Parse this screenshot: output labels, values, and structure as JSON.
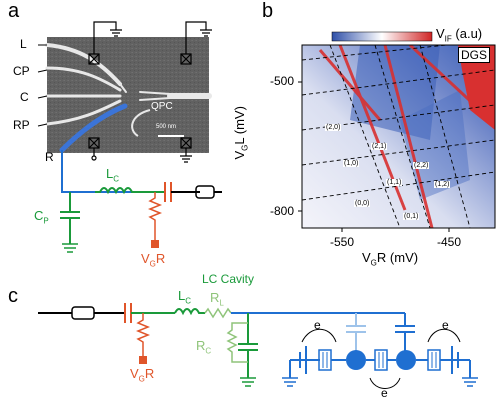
{
  "panels": {
    "a": "a",
    "b": "b",
    "c": "c"
  },
  "panel_a": {
    "gate_labels": [
      "L",
      "CP",
      "C",
      "RP",
      "R"
    ],
    "qpc_label": "QPC",
    "scale_bar": "500 nm",
    "lc_label": "L",
    "lc_sub": "C",
    "cp_label": "C",
    "cp_sub": "P",
    "vgr_label": "V",
    "vgr_sub": "G",
    "vgr_tail": "R"
  },
  "panel_b": {
    "colorbar_label": "V",
    "colorbar_sub": "IF",
    "colorbar_unit": " (a.u)",
    "tag": "DGS",
    "ylabel_main": "V",
    "ylabel_sub": "G",
    "ylabel_tail": "L (mV)",
    "xlabel_main": "V",
    "xlabel_sub": "G",
    "xlabel_tail": "R (mV)",
    "yticks": [
      "-500",
      "-800"
    ],
    "xticks": [
      "-550",
      "-450"
    ],
    "charge_states": [
      "(2,0)",
      "(2,1)",
      "(1,0)",
      "(2,2)",
      "(1,1)",
      "(1,2)",
      "(0,0)",
      "(0,1)"
    ]
  },
  "panel_c": {
    "cavity_label": "LC Cavity",
    "lc_label": "L",
    "lc_sub": "C",
    "rl_label": "R",
    "rl_sub": "L",
    "rc_label": "R",
    "rc_sub": "C",
    "vgr_label": "V",
    "vgr_sub": "G",
    "vgr_tail": "R",
    "electron_labels": [
      "e",
      "e",
      "e"
    ]
  },
  "colors": {
    "blue": "#1f6fd1",
    "green": "#1a9a3a",
    "orange": "#e0552a",
    "light_green": "#8fc47a",
    "light_blue": "#9ec3ea",
    "map_red": "#d83030",
    "map_blue": "#3a5fb8"
  }
}
